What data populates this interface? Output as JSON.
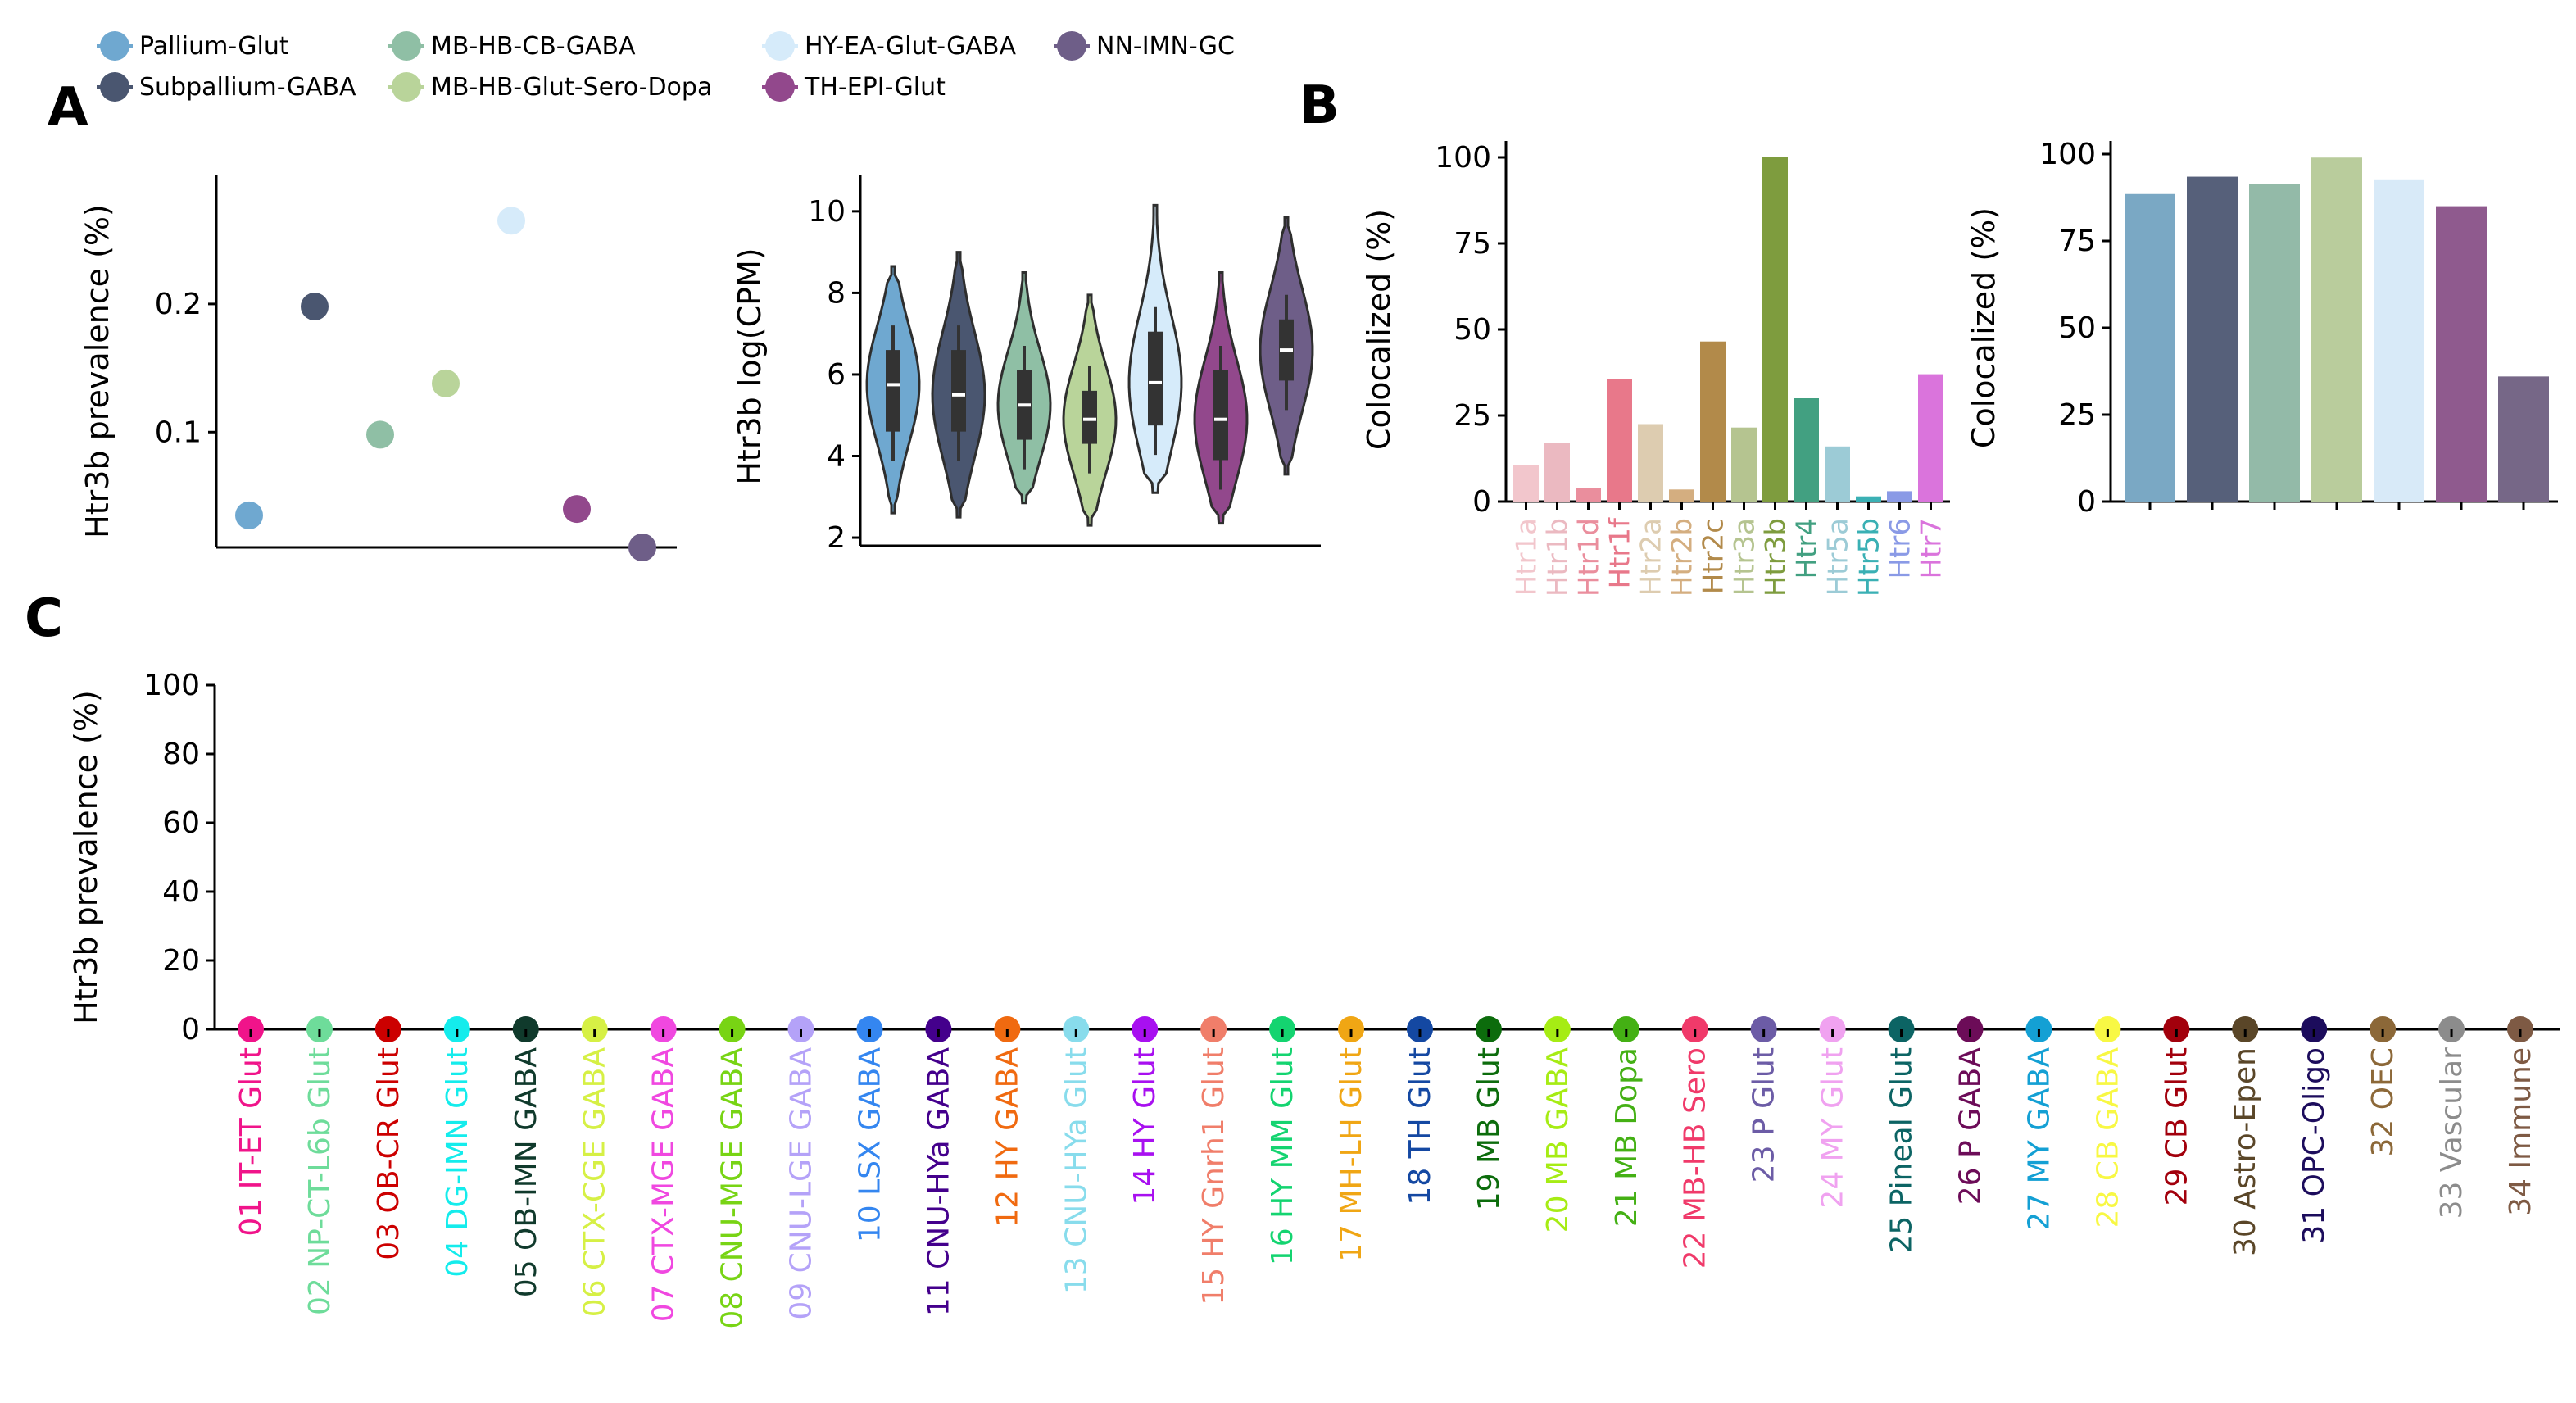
{
  "panel_labels": [
    "A",
    "B",
    "C"
  ],
  "legend": [
    {
      "label": "Pallium-Glut",
      "color": "#6fa8d0"
    },
    {
      "label": "Subpallium-GABA",
      "color": "#4a5670"
    },
    {
      "label": "MB-HB-CB-GABA",
      "color": "#8fbfa5"
    },
    {
      "label": "MB-HB-Glut-Sero-Dopa",
      "color": "#b9d49a"
    },
    {
      "label": "HY-EA-Glut-GABA",
      "color": "#d6ebfa"
    },
    {
      "label": "TH-EPI-Glut",
      "color": "#92488c"
    },
    {
      "label": "NN-IMN-GC",
      "color": "#6e5e88"
    }
  ],
  "chart_data": [
    {
      "id": "A1",
      "type": "scatter",
      "ylabel": "Htr3b prevalence (%)",
      "xlabel": "",
      "ylim": [
        0.01,
        0.285
      ],
      "yticks": [
        0.1,
        0.2
      ],
      "yticklabels": [
        "0.1",
        "0.2"
      ],
      "categories": [
        "Pallium-Glut",
        "Subpallium-GABA",
        "MB-HB-CB-GABA",
        "MB-HB-Glut-Sero-Dopa",
        "HY-EA-Glut-GABA",
        "TH-EPI-Glut",
        "NN-IMN-GC"
      ],
      "values": [
        0.035,
        0.198,
        0.098,
        0.138,
        0.265,
        0.04,
        0.01
      ],
      "colors": [
        "#6fa8d0",
        "#4a5670",
        "#8fbfa5",
        "#b9d49a",
        "#d6ebfa",
        "#92488c",
        "#6e5e88"
      ]
    },
    {
      "id": "A2",
      "type": "violin",
      "ylabel": "Htr3b log(CPM)",
      "xlabel": "",
      "ylim": [
        1.8,
        10.6
      ],
      "yticks": [
        2,
        4,
        6,
        8,
        10
      ],
      "yticklabels": [
        "2",
        "4",
        "6",
        "8",
        "10"
      ],
      "series": [
        {
          "name": "Pallium-Glut",
          "color": "#6fa8d0",
          "min": 2.6,
          "q1": 4.6,
          "median": 5.75,
          "q3": 6.6,
          "max": 8.65
        },
        {
          "name": "Subpallium-GABA",
          "color": "#4a5670",
          "min": 2.5,
          "q1": 4.6,
          "median": 5.5,
          "q3": 6.6,
          "max": 9.0
        },
        {
          "name": "MB-HB-CB-GABA",
          "color": "#8fbfa5",
          "min": 2.85,
          "q1": 4.4,
          "median": 5.25,
          "q3": 6.1,
          "max": 8.5
        },
        {
          "name": "MB-HB-Glut-Sero-Dopa",
          "color": "#b9d49a",
          "min": 2.3,
          "q1": 4.3,
          "median": 4.9,
          "q3": 5.6,
          "max": 7.95
        },
        {
          "name": "HY-EA-Glut-GABA",
          "color": "#d6ebfa",
          "min": 3.1,
          "q1": 4.75,
          "median": 5.8,
          "q3": 7.05,
          "max": 10.15
        },
        {
          "name": "TH-EPI-Glut",
          "color": "#92488c",
          "min": 2.35,
          "q1": 3.9,
          "median": 4.9,
          "q3": 6.1,
          "max": 8.5
        },
        {
          "name": "NN-IMN-GC",
          "color": "#6e5e88",
          "min": 3.55,
          "q1": 5.85,
          "median": 6.6,
          "q3": 7.35,
          "max": 9.85
        }
      ]
    },
    {
      "id": "B1",
      "type": "bar",
      "ylabel": "Colocalized (%)",
      "xlabel": "",
      "ylim": [
        0,
        100
      ],
      "yticks": [
        0,
        25,
        50,
        75,
        100
      ],
      "yticklabels": [
        "0",
        "25",
        "50",
        "75",
        "100"
      ],
      "categories": [
        "Htr1a",
        "Htr1b",
        "Htr1d",
        "Htr1f",
        "Htr2a",
        "Htr2b",
        "Htr2c",
        "Htr3a",
        "Htr3b",
        "Htr4",
        "Htr5a",
        "Htr5b",
        "Htr6",
        "Htr7"
      ],
      "values": [
        10.5,
        17,
        4,
        35.5,
        22.5,
        3.5,
        46.5,
        21.5,
        100,
        30,
        16,
        1.5,
        3,
        37
      ],
      "colors": [
        "#f2c6cc",
        "#ebb9c1",
        "#ea8e9d",
        "#e8788a",
        "#ddccb0",
        "#d4ae80",
        "#b28a4a",
        "#b5c490",
        "#7e9c3e",
        "#42a081",
        "#9ccbd6",
        "#3ab0b4",
        "#8a9ae6",
        "#da74dc"
      ]
    },
    {
      "id": "B2",
      "type": "bar",
      "ylabel": "Colocalized (%)",
      "xlabel": "",
      "ylim": [
        0,
        100
      ],
      "yticks": [
        0,
        25,
        50,
        75,
        100
      ],
      "yticklabels": [
        "0",
        "25",
        "50",
        "75",
        "100"
      ],
      "categories": [
        "Pallium-Glut",
        "Subpallium-GABA",
        "MB-HB-CB-GABA",
        "MB-HB-Glut-Sero-Dopa",
        "HY-EA-Glut-GABA",
        "TH-EPI-Glut",
        "NN-IMN-GC"
      ],
      "values": [
        88.5,
        93.5,
        91.5,
        99,
        92.5,
        85,
        36
      ],
      "colors": [
        "#7aa8c4",
        "#56607a",
        "#93baa8",
        "#b9cc9c",
        "#d8eaf8",
        "#8f5a8e",
        "#766787"
      ]
    },
    {
      "id": "C",
      "type": "scatter",
      "ylabel": "Htr3b prevalence (%)",
      "xlabel": "",
      "ylim": [
        0,
        100
      ],
      "yticks": [
        0,
        20,
        40,
        60,
        80,
        100
      ],
      "yticklabels": [
        "0",
        "20",
        "40",
        "60",
        "80",
        "100"
      ],
      "categories": [
        "01 IT-ET Glut",
        "02 NP-CT-L6b Glut",
        "03 OB-CR Glut",
        "04 DG-IMN Glut",
        "05 OB-IMN GABA",
        "06 CTX-CGE GABA",
        "07 CTX-MGE GABA",
        "08 CNU-MGE GABA",
        "09 CNU-LGE GABA",
        "10 LSX GABA",
        "11 CNU-HYa GABA",
        "12 HY GABA",
        "13 CNU-HYa Glut",
        "14 HY Glut",
        "15 HY Gnrh1 Glut",
        "16 HY MM Glut",
        "17 MH-LH Glut",
        "18 TH Glut",
        "19 MB Glut",
        "20 MB GABA",
        "21 MB Dopa",
        "22 MB-HB Sero",
        "23 P Glut",
        "24 MY Glut",
        "25 Pineal Glut",
        "26 P GABA",
        "27 MY GABA",
        "28 CB GABA",
        "29 CB Glut",
        "30 Astro-Epen",
        "31 OPC-Oligo",
        "32 OEC",
        "33 Vascular",
        "34 Immune"
      ],
      "values": [
        0,
        0,
        0,
        0,
        0,
        0,
        0,
        0,
        0,
        0,
        0,
        0,
        0,
        0,
        0,
        0,
        0,
        0,
        0,
        0,
        0,
        0,
        0,
        0,
        0,
        0,
        0,
        0,
        0,
        0,
        0,
        0,
        0,
        0
      ],
      "colors": [
        "#f0148a",
        "#6edc9a",
        "#cc0000",
        "#14ecec",
        "#103a2c",
        "#d6f045",
        "#f048e0",
        "#78d414",
        "#b4a2f8",
        "#3486f0",
        "#44008c",
        "#f06a10",
        "#88dcec",
        "#a810f0",
        "#f07e6a",
        "#14d470",
        "#f0a614",
        "#1448a2",
        "#0c6c0c",
        "#a6ec14",
        "#44b014",
        "#f03a6a",
        "#6c5ca6",
        "#f0a2f0",
        "#0c6464",
        "#6c0c58",
        "#14a0d4",
        "#f8f844",
        "#a2000c",
        "#5a4628",
        "#1c0c5c",
        "#8c6838",
        "#8c8c8c",
        "#7e5a44"
      ]
    }
  ]
}
